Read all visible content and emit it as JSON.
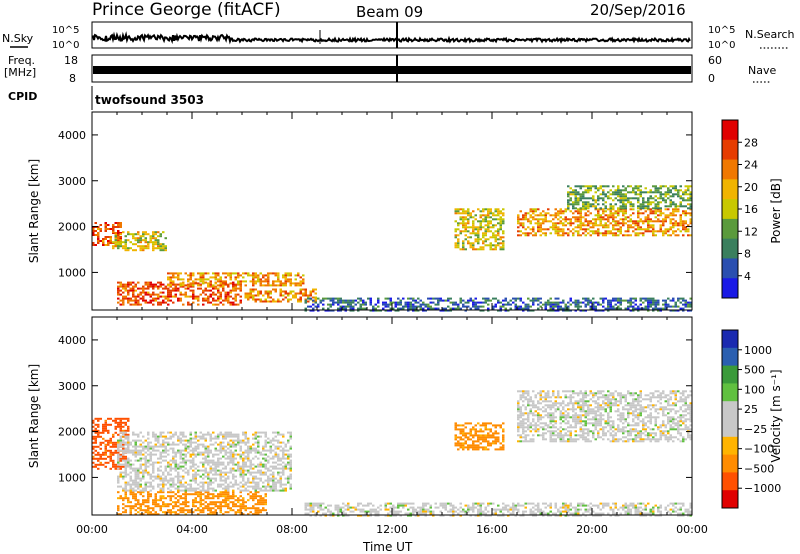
{
  "header": {
    "station": "Prince George (fitACF)",
    "beam": "Beam 09",
    "date": "20/Sep/2016"
  },
  "strips": {
    "nsky": {
      "label": "N.Sky",
      "ticks": [
        "10^5",
        "10^0"
      ],
      "right_ticks": [
        "10^5",
        "10^0"
      ],
      "right_label": "N.Search"
    },
    "freq": {
      "label_line1": "Freq.",
      "label_line2": "[MHz]",
      "ticks": [
        "18",
        "8"
      ],
      "right_ticks": [
        "60",
        "0"
      ],
      "right_label": "Nave"
    },
    "cpid": {
      "label": "CPID",
      "value": "twofsound 3503"
    }
  },
  "colors": {
    "power": [
      "#1a1ae6",
      "#2a4fb0",
      "#3a7f5e",
      "#5a9a3c",
      "#c8c800",
      "#f0b400",
      "#f07800",
      "#e63c00",
      "#e00000"
    ],
    "velocity": [
      "#e00000",
      "#ff5000",
      "#ff8c00",
      "#ffb400",
      "#c8c8c8",
      "#c8c8c8",
      "#60c040",
      "#3a9a3a",
      "#2a5fb0",
      "#1a2ab0"
    ]
  },
  "chart_data": [
    {
      "type": "heatmap",
      "title": "Power",
      "xlabel": "",
      "ylabel": "Slant Range [km]",
      "ylim": [
        180,
        4500
      ],
      "xlim": [
        0,
        24
      ],
      "x_ticks": [
        "00:00",
        "04:00",
        "08:00",
        "12:00",
        "16:00",
        "20:00",
        "00:00"
      ],
      "y_ticks": [
        1000,
        2000,
        3000,
        4000
      ],
      "colorbar": {
        "label": "Power [dB]",
        "ticks": [
          "28",
          "24",
          "20",
          "16",
          "12",
          "8",
          "4"
        ]
      },
      "series": [
        {
          "x_start": 0.0,
          "x_end": 1.2,
          "y_start": 1600,
          "y_end": 2100,
          "value": 24
        },
        {
          "x_start": 0.8,
          "x_end": 3.0,
          "y_start": 1500,
          "y_end": 1900,
          "value": 16
        },
        {
          "x_start": 1.0,
          "x_end": 6.0,
          "y_start": 300,
          "y_end": 800,
          "value": 24
        },
        {
          "x_start": 3.0,
          "x_end": 8.5,
          "y_start": 700,
          "y_end": 1000,
          "value": 20
        },
        {
          "x_start": 6.0,
          "x_end": 9.0,
          "y_start": 350,
          "y_end": 650,
          "value": 20
        },
        {
          "x_start": 8.5,
          "x_end": 24.0,
          "y_start": 180,
          "y_end": 450,
          "value": 6
        },
        {
          "x_start": 14.5,
          "x_end": 16.5,
          "y_start": 1500,
          "y_end": 2400,
          "value": 16
        },
        {
          "x_start": 17.0,
          "x_end": 24.0,
          "y_start": 1800,
          "y_end": 2400,
          "value": 20
        },
        {
          "x_start": 19.0,
          "x_end": 24.0,
          "y_start": 2400,
          "y_end": 2900,
          "value": 12
        }
      ]
    },
    {
      "type": "heatmap",
      "title": "Velocity",
      "xlabel": "Time UT",
      "ylabel": "Slant Range [km]",
      "ylim": [
        180,
        4500
      ],
      "xlim": [
        0,
        24
      ],
      "x_ticks": [
        "00:00",
        "04:00",
        "08:00",
        "12:00",
        "16:00",
        "20:00",
        "00:00"
      ],
      "y_ticks": [
        1000,
        2000,
        3000,
        4000
      ],
      "colorbar": {
        "label": "Velocity [m s⁻¹]",
        "ticks": [
          "1000",
          "500",
          "100",
          "25",
          "−25",
          "−100",
          "−500",
          "−1000"
        ]
      },
      "series": [
        {
          "x_start": 0.0,
          "x_end": 1.5,
          "y_start": 1200,
          "y_end": 2300,
          "value": -500
        },
        {
          "x_start": 1.0,
          "x_end": 7.0,
          "y_start": 200,
          "y_end": 700,
          "value": -100
        },
        {
          "x_start": 1.0,
          "x_end": 8.0,
          "y_start": 700,
          "y_end": 2000,
          "value": 0
        },
        {
          "x_start": 8.5,
          "x_end": 24.0,
          "y_start": 180,
          "y_end": 450,
          "value": 0
        },
        {
          "x_start": 14.5,
          "x_end": 16.5,
          "y_start": 1600,
          "y_end": 2200,
          "value": -100
        },
        {
          "x_start": 17.0,
          "x_end": 24.0,
          "y_start": 1800,
          "y_end": 2900,
          "value": 0
        }
      ]
    }
  ]
}
